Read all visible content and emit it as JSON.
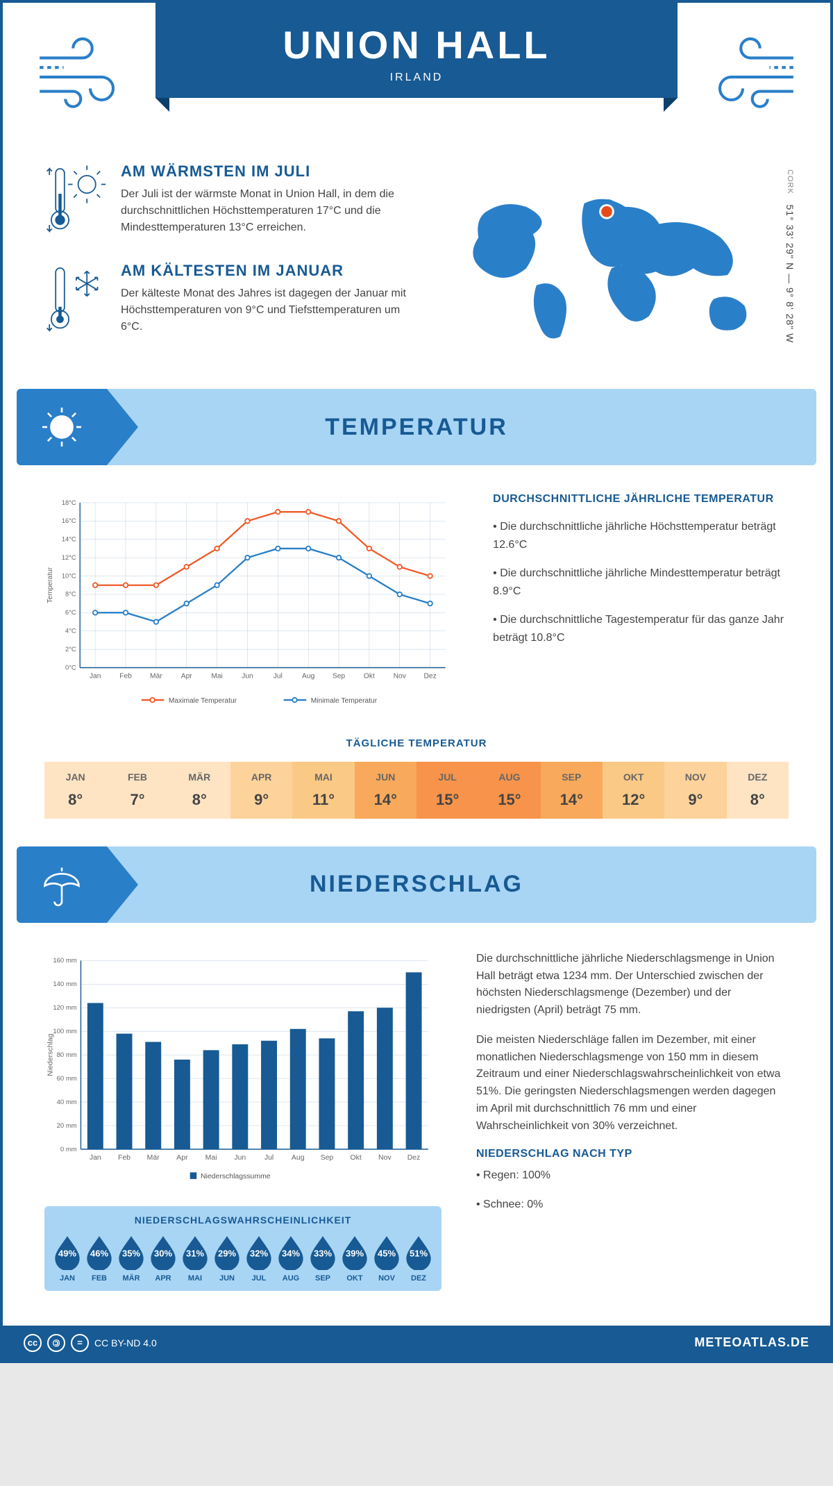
{
  "header": {
    "title": "UNION HALL",
    "subtitle": "IRLAND"
  },
  "colors": {
    "primary": "#175a94",
    "accent": "#2a7fc9",
    "banner_bg": "#a9d5f5",
    "max_line": "#f05a28",
    "min_line": "#2a7fc9",
    "bar": "#175a94",
    "marker": "#e84b1a"
  },
  "intro": {
    "warm": {
      "title": "AM WÄRMSTEN IM JULI",
      "text": "Der Juli ist der wärmste Monat in Union Hall, in dem die durchschnittlichen Höchsttemperaturen 17°C und die Mindesttemperaturen 13°C erreichen."
    },
    "cold": {
      "title": "AM KÄLTESTEN IM JANUAR",
      "text": "Der kälteste Monat des Jahres ist dagegen der Januar mit Höchsttemperaturen von 9°C und Tiefsttemperaturen um 6°C."
    },
    "coords": "51° 33' 29\" N — 9° 8' 28\" W",
    "region": "CORK"
  },
  "months_short": [
    "Jan",
    "Feb",
    "Mär",
    "Apr",
    "Mai",
    "Jun",
    "Jul",
    "Aug",
    "Sep",
    "Okt",
    "Nov",
    "Dez"
  ],
  "months_upper": [
    "JAN",
    "FEB",
    "MÄR",
    "APR",
    "MAI",
    "JUN",
    "JUL",
    "AUG",
    "SEP",
    "OKT",
    "NOV",
    "DEZ"
  ],
  "temperature": {
    "banner": "TEMPERATUR",
    "chart": {
      "ylabel": "Temperatur",
      "ymin": 0,
      "ymax": 18,
      "ystep": 2,
      "max_series": [
        9,
        9,
        9,
        11,
        13,
        16,
        17,
        17,
        16,
        13,
        11,
        10
      ],
      "min_series": [
        6,
        6,
        5,
        7,
        9,
        12,
        13,
        13,
        12,
        10,
        8,
        7
      ],
      "legend_max": "Maximale Temperatur",
      "legend_min": "Minimale Temperatur",
      "max_color": "#f05a28",
      "min_color": "#2a7fc9"
    },
    "info": {
      "heading": "DURCHSCHNITTLICHE JÄHRLICHE TEMPERATUR",
      "bullets": [
        "• Die durchschnittliche jährliche Höchsttemperatur beträgt 12.6°C",
        "• Die durchschnittliche jährliche Mindesttemperatur beträgt 8.9°C",
        "• Die durchschnittliche Tagestemperatur für das ganze Jahr beträgt 10.8°C"
      ]
    },
    "daily": {
      "heading": "TÄGLICHE TEMPERATUR",
      "values": [
        "8°",
        "7°",
        "8°",
        "9°",
        "11°",
        "14°",
        "15°",
        "15°",
        "14°",
        "12°",
        "9°",
        "8°"
      ],
      "colors": [
        "#ffe4c4",
        "#ffe4c4",
        "#ffe4c4",
        "#fdd39b",
        "#fbc986",
        "#f9a95b",
        "#f7934a",
        "#f7934a",
        "#f9a95b",
        "#fbc986",
        "#fdd39b",
        "#ffe4c4"
      ]
    }
  },
  "precipitation": {
    "banner": "NIEDERSCHLAG",
    "chart": {
      "ylabel": "Niederschlag",
      "ymin": 0,
      "ymax": 160,
      "ystep": 20,
      "values": [
        124,
        98,
        91,
        76,
        84,
        89,
        92,
        102,
        94,
        117,
        120,
        150
      ],
      "legend": "Niederschlagssumme",
      "bar_color": "#175a94"
    },
    "text1": "Die durchschnittliche jährliche Niederschlagsmenge in Union Hall beträgt etwa 1234 mm. Der Unterschied zwischen der höchsten Niederschlagsmenge (Dezember) und der niedrigsten (April) beträgt 75 mm.",
    "text2": "Die meisten Niederschläge fallen im Dezember, mit einer monatlichen Niederschlagsmenge von 150 mm in diesem Zeitraum und einer Niederschlagswahrscheinlichkeit von etwa 51%. Die geringsten Niederschlagsmengen werden dagegen im April mit durchschnittlich 76 mm und einer Wahrscheinlichkeit von 30% verzeichnet.",
    "type_heading": "NIEDERSCHLAG NACH TYP",
    "type_bullets": [
      "• Regen: 100%",
      "• Schnee: 0%"
    ],
    "probability": {
      "heading": "NIEDERSCHLAGSWAHRSCHEINLICHKEIT",
      "values": [
        "49%",
        "46%",
        "35%",
        "30%",
        "31%",
        "29%",
        "32%",
        "34%",
        "33%",
        "39%",
        "45%",
        "51%"
      ]
    }
  },
  "footer": {
    "license": "CC BY-ND 4.0",
    "brand": "METEOATLAS.DE"
  }
}
